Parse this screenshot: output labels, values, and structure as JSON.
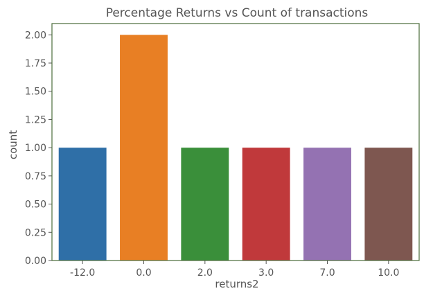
{
  "chart_data": {
    "type": "bar",
    "title": "Percentage Returns vs Count of transactions",
    "xlabel": "returns2",
    "ylabel": "count",
    "categories": [
      "-12.0",
      "0.0",
      "2.0",
      "3.0",
      "7.0",
      "10.0"
    ],
    "values": [
      1,
      2,
      1,
      1,
      1,
      1
    ],
    "colors": [
      "#2f6fa7",
      "#e87f24",
      "#3a8f3a",
      "#c0393b",
      "#9472b2",
      "#7e5750"
    ],
    "ylim": [
      0,
      2.1
    ],
    "yticks": [
      "0.00",
      "0.25",
      "0.50",
      "0.75",
      "1.00",
      "1.25",
      "1.50",
      "1.75",
      "2.00"
    ],
    "ytick_values": [
      0,
      0.25,
      0.5,
      0.75,
      1.0,
      1.25,
      1.5,
      1.75,
      2.0
    ],
    "grid": false,
    "frame_color": "#4a6b3a"
  }
}
